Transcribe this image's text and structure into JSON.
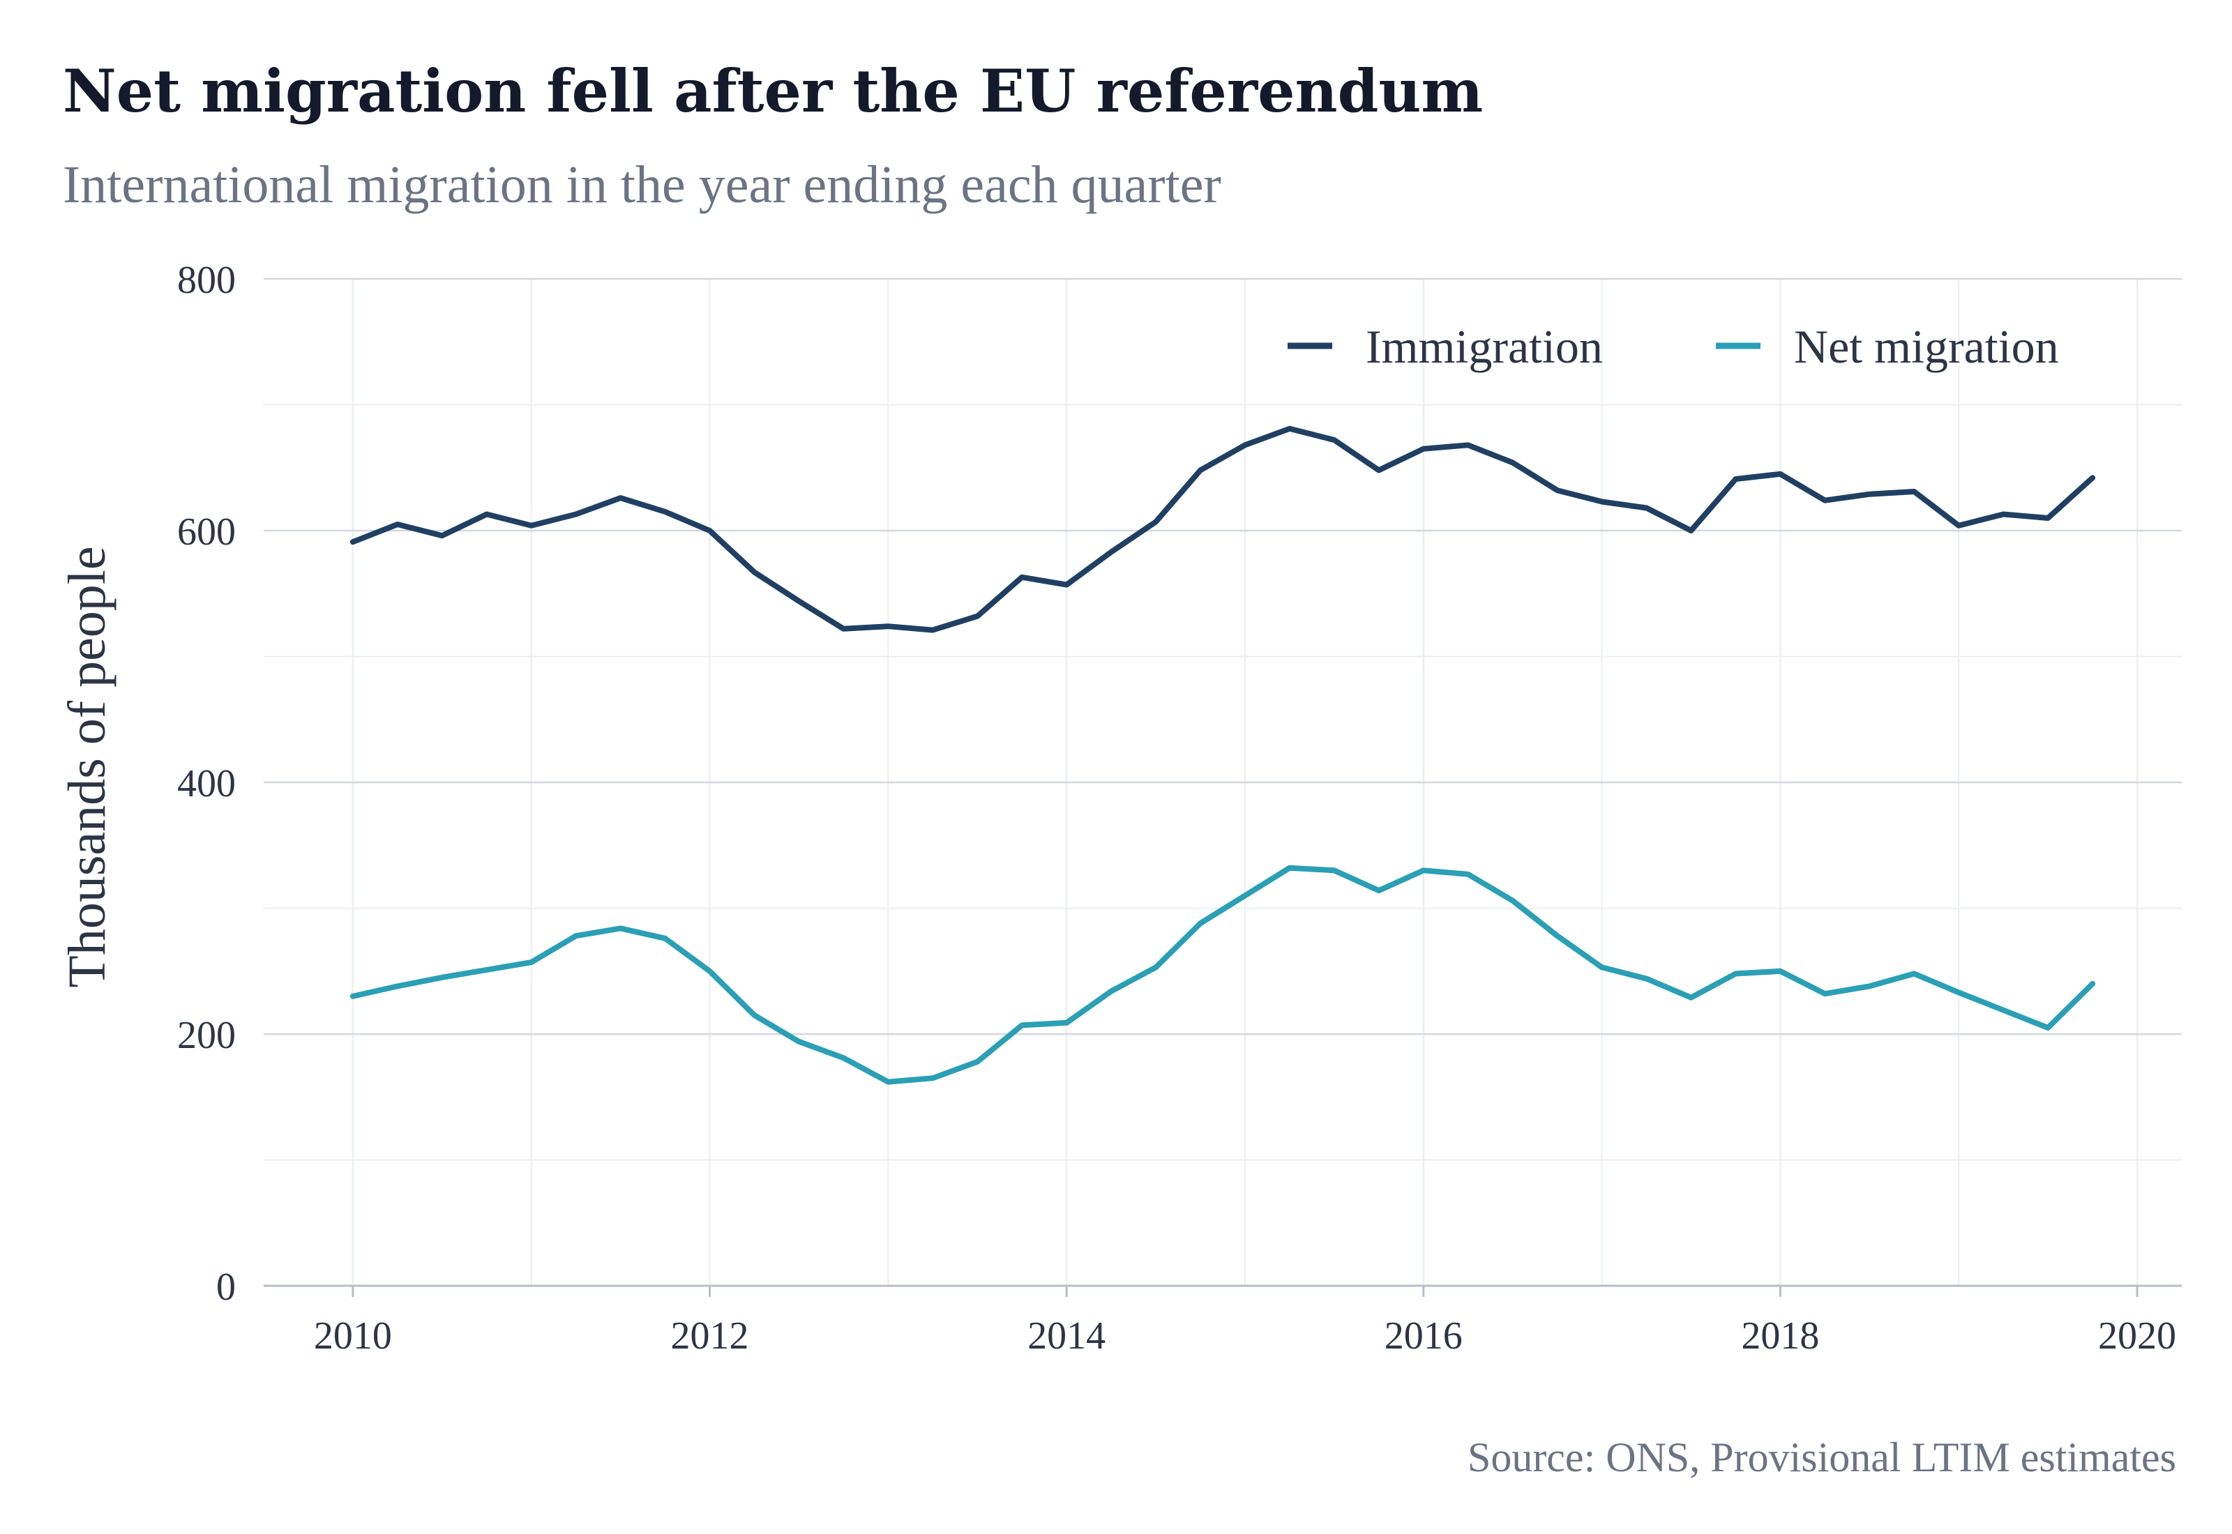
{
  "title": "Net migration fell after the EU referendum",
  "subtitle": "International migration in the year ending each quarter",
  "caption": "Source: ONS, Provisional LTIM estimates",
  "colors": {
    "immigration": "#1f3f63",
    "net_migration": "#2a9fb5",
    "major_grid": "#d4d7dc",
    "minor_grid": "#eceef1",
    "axis": "#b9bdc4"
  },
  "chart_data": {
    "type": "line",
    "ylabel": "Thousands of people",
    "xlabel": "",
    "xlim": [
      2009.5,
      2020.25
    ],
    "ylim": [
      0,
      800
    ],
    "x_ticks": [
      2010,
      2012,
      2014,
      2016,
      2018,
      2020
    ],
    "x_tick_labels": [
      "2010",
      "2012",
      "2014",
      "2016",
      "2018",
      "2020"
    ],
    "y_ticks": [
      0,
      200,
      400,
      600,
      800
    ],
    "y_tick_labels": [
      "0",
      "200",
      "400",
      "600",
      "800"
    ],
    "grid": true,
    "legend": "top-right",
    "x": [
      2010.0,
      2010.25,
      2010.5,
      2010.75,
      2011.0,
      2011.25,
      2011.5,
      2011.75,
      2012.0,
      2012.25,
      2012.5,
      2012.75,
      2013.0,
      2013.25,
      2013.5,
      2013.75,
      2014.0,
      2014.25,
      2014.5,
      2014.75,
      2015.0,
      2015.25,
      2015.5,
      2015.75,
      2016.0,
      2016.25,
      2016.5,
      2016.75,
      2017.0,
      2017.25,
      2017.5,
      2017.75,
      2018.0,
      2018.25,
      2018.5,
      2018.75,
      2019.0,
      2019.25,
      2019.5,
      2019.75
    ],
    "series": [
      {
        "name": "Immigration",
        "color": "#1f3f63",
        "values": [
          591,
          605,
          596,
          613,
          604,
          613,
          626,
          615,
          600,
          567,
          544,
          522,
          524,
          521,
          532,
          563,
          557,
          583,
          607,
          648,
          668,
          681,
          672,
          648,
          665,
          668,
          654,
          632,
          623,
          618,
          600,
          641,
          645,
          624,
          629,
          631,
          604,
          613,
          610,
          642
        ]
      },
      {
        "name": "Net migration",
        "color": "#2a9fb5",
        "values": [
          230,
          238,
          245,
          251,
          257,
          278,
          284,
          276,
          250,
          215,
          194,
          181,
          162,
          165,
          178,
          207,
          209,
          234,
          253,
          288,
          310,
          332,
          330,
          314,
          330,
          327,
          306,
          278,
          253,
          244,
          229,
          248,
          250,
          232,
          238,
          248,
          233,
          219,
          205,
          240
        ]
      }
    ]
  }
}
